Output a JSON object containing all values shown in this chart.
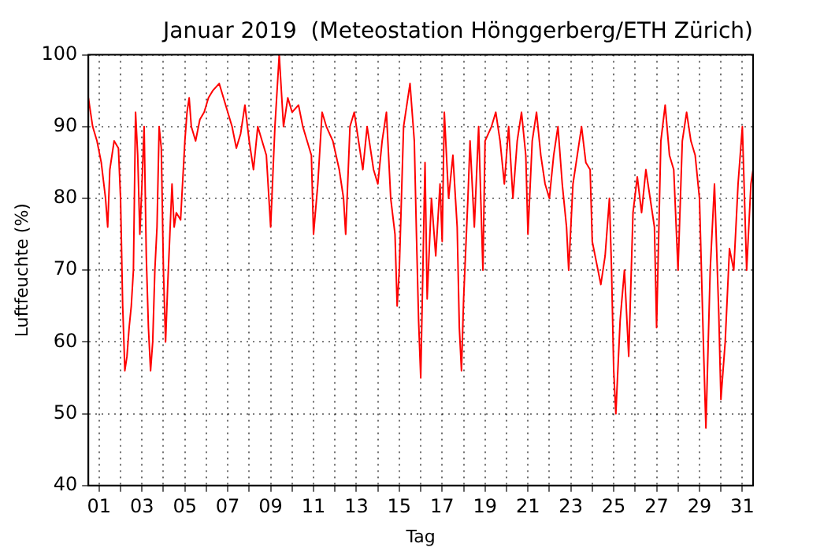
{
  "chart_data": {
    "type": "line",
    "title": "Januar 2019  (Meteostation Hönggerberg/ETH Zürich)",
    "xlabel": "Tag",
    "ylabel": "Luftfeuchte (%)",
    "xlim": [
      0.5,
      31.5
    ],
    "ylim": [
      40,
      100
    ],
    "xticks": [
      {
        "value": 1,
        "label": "01"
      },
      {
        "value": 2,
        "label": null
      },
      {
        "value": 3,
        "label": "03"
      },
      {
        "value": 4,
        "label": null
      },
      {
        "value": 5,
        "label": "05"
      },
      {
        "value": 6,
        "label": null
      },
      {
        "value": 7,
        "label": "07"
      },
      {
        "value": 8,
        "label": null
      },
      {
        "value": 9,
        "label": "09"
      },
      {
        "value": 10,
        "label": null
      },
      {
        "value": 11,
        "label": "11"
      },
      {
        "value": 12,
        "label": null
      },
      {
        "value": 13,
        "label": "13"
      },
      {
        "value": 14,
        "label": null
      },
      {
        "value": 15,
        "label": "15"
      },
      {
        "value": 16,
        "label": null
      },
      {
        "value": 17,
        "label": "17"
      },
      {
        "value": 18,
        "label": null
      },
      {
        "value": 19,
        "label": "19"
      },
      {
        "value": 20,
        "label": null
      },
      {
        "value": 21,
        "label": "21"
      },
      {
        "value": 22,
        "label": null
      },
      {
        "value": 23,
        "label": "23"
      },
      {
        "value": 24,
        "label": null
      },
      {
        "value": 25,
        "label": "25"
      },
      {
        "value": 26,
        "label": null
      },
      {
        "value": 27,
        "label": "27"
      },
      {
        "value": 28,
        "label": null
      },
      {
        "value": 29,
        "label": "29"
      },
      {
        "value": 30,
        "label": null
      },
      {
        "value": 31,
        "label": "31"
      }
    ],
    "yticks": [
      40,
      50,
      60,
      70,
      80,
      90,
      100
    ],
    "grid": true,
    "marker": "none",
    "line_style": "solid",
    "series": [
      {
        "color": "#ff0000",
        "x": [
          0.5,
          0.7,
          0.9,
          1.1,
          1.3,
          1.4,
          1.5,
          1.7,
          1.9,
          2.0,
          2.1,
          2.2,
          2.3,
          2.4,
          2.5,
          2.6,
          2.7,
          2.8,
          2.9,
          3.0,
          3.1,
          3.2,
          3.3,
          3.4,
          3.5,
          3.6,
          3.7,
          3.8,
          3.9,
          4.0,
          4.1,
          4.2,
          4.3,
          4.4,
          4.5,
          4.6,
          4.8,
          5.0,
          5.1,
          5.2,
          5.3,
          5.5,
          5.7,
          5.9,
          6.1,
          6.3,
          6.6,
          6.8,
          7.0,
          7.2,
          7.4,
          7.6,
          7.8,
          8.0,
          8.2,
          8.4,
          8.6,
          8.8,
          9.0,
          9.2,
          9.4,
          9.6,
          9.8,
          10.0,
          10.3,
          10.5,
          10.7,
          10.9,
          11.0,
          11.2,
          11.4,
          11.6,
          11.9,
          12.2,
          12.4,
          12.5,
          12.7,
          12.9,
          13.1,
          13.3,
          13.5,
          13.8,
          14.0,
          14.2,
          14.4,
          14.6,
          14.8,
          14.9,
          15.0,
          15.2,
          15.5,
          15.7,
          15.8,
          15.9,
          16.0,
          16.1,
          16.2,
          16.3,
          16.5,
          16.7,
          16.9,
          17.0,
          17.1,
          17.3,
          17.5,
          17.7,
          17.8,
          17.9,
          18.0,
          18.2,
          18.3,
          18.5,
          18.7,
          18.9,
          19.0,
          19.3,
          19.5,
          19.7,
          19.9,
          20.1,
          20.3,
          20.5,
          20.7,
          20.9,
          21.0,
          21.2,
          21.4,
          21.6,
          21.8,
          22.0,
          22.2,
          22.4,
          22.6,
          22.8,
          22.9,
          23.1,
          23.3,
          23.5,
          23.7,
          23.9,
          24.0,
          24.2,
          24.4,
          24.6,
          24.8,
          24.9,
          25.0,
          25.1,
          25.3,
          25.5,
          25.7,
          25.9,
          26.1,
          26.3,
          26.5,
          26.7,
          26.9,
          27.0,
          27.2,
          27.4,
          27.6,
          27.8,
          28.0,
          28.2,
          28.4,
          28.6,
          28.8,
          29.0,
          29.2,
          29.3,
          29.5,
          29.7,
          29.9,
          30.0,
          30.2,
          30.4,
          30.6,
          30.8,
          31.0,
          31.2,
          31.4,
          31.5
        ],
        "values": [
          94,
          90,
          88,
          85,
          80,
          76,
          84,
          88,
          87,
          80,
          65,
          56,
          58,
          62,
          65,
          70,
          92,
          86,
          75,
          82,
          90,
          72,
          62,
          56,
          60,
          70,
          76,
          90,
          87,
          70,
          60,
          68,
          75,
          82,
          76,
          78,
          77,
          88,
          92,
          94,
          90,
          88,
          91,
          92,
          94,
          95,
          96,
          94,
          92,
          90,
          87,
          89,
          93,
          88,
          84,
          90,
          88,
          86,
          76,
          90,
          100,
          90,
          94,
          92,
          93,
          90,
          88,
          86,
          75,
          82,
          92,
          90,
          88,
          84,
          80,
          75,
          90,
          92,
          88,
          84,
          90,
          84,
          82,
          88,
          92,
          80,
          75,
          65,
          70,
          90,
          96,
          88,
          75,
          63,
          55,
          70,
          85,
          66,
          80,
          72,
          82,
          74,
          92,
          80,
          86,
          76,
          62,
          56,
          66,
          80,
          88,
          76,
          90,
          70,
          88,
          90,
          92,
          88,
          82,
          90,
          80,
          88,
          92,
          86,
          75,
          88,
          92,
          86,
          82,
          80,
          86,
          90,
          82,
          76,
          70,
          82,
          86,
          90,
          85,
          84,
          74,
          71,
          68,
          72,
          80,
          70,
          56,
          50,
          63,
          70,
          58,
          78,
          83,
          78,
          84,
          80,
          76,
          62,
          88,
          93,
          86,
          84,
          70,
          88,
          92,
          88,
          86,
          80,
          58,
          48,
          70,
          82,
          64,
          52,
          60,
          73,
          70,
          82,
          90,
          70,
          82,
          84
        ]
      }
    ]
  }
}
